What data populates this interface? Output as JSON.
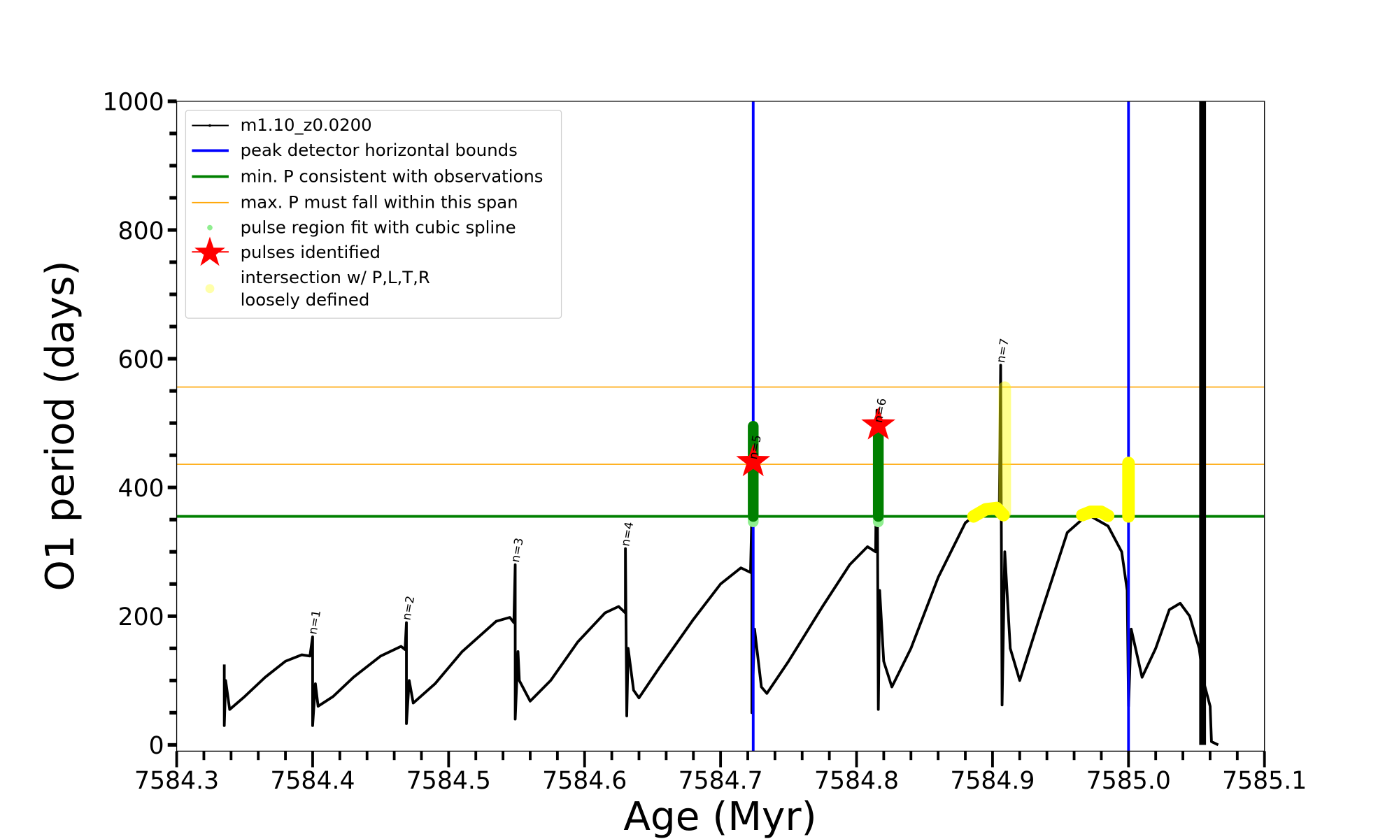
{
  "chart_data": {
    "type": "line",
    "xlabel": "Age (Myr)",
    "ylabel": "O1 period (days)",
    "xlim": [
      7584.3,
      7585.1
    ],
    "ylim": [
      0,
      1000
    ],
    "grid": false,
    "x_ticks": [
      "7584.3",
      "7584.4",
      "7584.5",
      "7584.6",
      "7584.7",
      "7584.8",
      "7584.9",
      "7585.0",
      "7585.1"
    ],
    "y_ticks": [
      "0",
      "200",
      "400",
      "600",
      "800",
      "1000"
    ],
    "legend_placement": "top-left",
    "legend": [
      {
        "label": "m1.10_z0.0200",
        "kind": "line-marker",
        "color": "#000000"
      },
      {
        "label": "peak detector horizontal bounds",
        "kind": "line",
        "color": "#0000ff"
      },
      {
        "label": "min. P consistent with observations",
        "kind": "line",
        "color": "#008000"
      },
      {
        "label": "max. P must fall within this span",
        "kind": "thin-line",
        "color": "#ffa500"
      },
      {
        "label": "pulse region fit with cubic spline",
        "kind": "dot",
        "color": "#90ee90"
      },
      {
        "label": "pulses identified",
        "kind": "star",
        "color": "#ff0000"
      },
      {
        "label": "intersection w/ P,L,T,R",
        "label2": "loosely defined",
        "kind": "dot",
        "color": "#ffffaa"
      }
    ],
    "series": [
      {
        "name": "m1.10_z0.0200",
        "color": "#000000",
        "points": [
          [
            7584.335,
            125
          ],
          [
            7584.335,
            30
          ],
          [
            7584.336,
            100
          ],
          [
            7584.339,
            55
          ],
          [
            7584.35,
            75
          ],
          [
            7584.365,
            105
          ],
          [
            7584.38,
            130
          ],
          [
            7584.392,
            140
          ],
          [
            7584.398,
            138
          ],
          [
            7584.4,
            168
          ],
          [
            7584.4,
            30
          ],
          [
            7584.402,
            95
          ],
          [
            7584.404,
            60
          ],
          [
            7584.415,
            75
          ],
          [
            7584.43,
            105
          ],
          [
            7584.45,
            138
          ],
          [
            7584.465,
            153
          ],
          [
            7584.468,
            148
          ],
          [
            7584.469,
            190
          ],
          [
            7584.469,
            33
          ],
          [
            7584.471,
            100
          ],
          [
            7584.474,
            65
          ],
          [
            7584.49,
            95
          ],
          [
            7584.51,
            145
          ],
          [
            7584.535,
            192
          ],
          [
            7584.545,
            198
          ],
          [
            7584.548,
            190
          ],
          [
            7584.549,
            280
          ],
          [
            7584.549,
            40
          ],
          [
            7584.551,
            145
          ],
          [
            7584.552,
            100
          ],
          [
            7584.56,
            68
          ],
          [
            7584.575,
            100
          ],
          [
            7584.595,
            160
          ],
          [
            7584.615,
            205
          ],
          [
            7584.625,
            215
          ],
          [
            7584.63,
            205
          ],
          [
            7584.63,
            305
          ],
          [
            7584.631,
            45
          ],
          [
            7584.632,
            150
          ],
          [
            7584.636,
            85
          ],
          [
            7584.64,
            73
          ],
          [
            7584.655,
            120
          ],
          [
            7584.68,
            195
          ],
          [
            7584.7,
            250
          ],
          [
            7584.715,
            275
          ],
          [
            7584.722,
            268
          ],
          [
            7584.723,
            360
          ],
          [
            7584.723,
            50
          ],
          [
            7584.725,
            180
          ],
          [
            7584.73,
            90
          ],
          [
            7584.734,
            80
          ],
          [
            7584.75,
            130
          ],
          [
            7584.775,
            215
          ],
          [
            7584.795,
            280
          ],
          [
            7584.808,
            308
          ],
          [
            7584.814,
            300
          ],
          [
            7584.815,
            520
          ],
          [
            7584.816,
            55
          ],
          [
            7584.817,
            240
          ],
          [
            7584.82,
            130
          ],
          [
            7584.826,
            90
          ],
          [
            7584.84,
            150
          ],
          [
            7584.86,
            260
          ],
          [
            7584.88,
            345
          ],
          [
            7584.895,
            370
          ],
          [
            7584.905,
            362
          ],
          [
            7584.906,
            590
          ],
          [
            7584.907,
            62
          ],
          [
            7584.909,
            300
          ],
          [
            7584.913,
            150
          ],
          [
            7584.92,
            100
          ],
          [
            7584.935,
            200
          ],
          [
            7584.955,
            330
          ],
          [
            7584.97,
            358
          ],
          [
            7584.985,
            340
          ],
          [
            7584.995,
            300
          ],
          [
            7584.999,
            240
          ],
          [
            7585.0,
            60
          ],
          [
            7585.002,
            180
          ],
          [
            7585.01,
            105
          ],
          [
            7585.02,
            150
          ],
          [
            7585.03,
            210
          ],
          [
            7585.038,
            220
          ],
          [
            7585.045,
            200
          ],
          [
            7585.052,
            150
          ],
          [
            7585.055,
            100
          ],
          [
            7585.06,
            60
          ],
          [
            7585.061,
            5
          ],
          [
            7585.066,
            0
          ]
        ],
        "dense_band": {
          "x0": 7585.052,
          "x1": 7585.057,
          "y0": 0,
          "y1": 1000
        }
      }
    ],
    "peak_detector_bounds": [
      7584.724,
      7585.0
    ],
    "min_period": 355,
    "max_period_span": [
      436,
      556
    ],
    "spline_regions": [
      {
        "x": 7584.724,
        "y0": 355,
        "y1": 495
      },
      {
        "x": 7584.816,
        "y0": 355,
        "y1": 495
      }
    ],
    "intersections": [
      {
        "points": [
          [
            7584.886,
            355
          ],
          [
            7584.895,
            366
          ],
          [
            7584.903,
            368
          ],
          [
            7584.908,
            357
          ]
        ],
        "alpha": 1
      },
      {
        "points": [
          [
            7584.909,
            360
          ],
          [
            7584.909,
            555
          ]
        ],
        "alpha": 0.45
      },
      {
        "points": [
          [
            7584.966,
            357
          ],
          [
            7584.972,
            362
          ],
          [
            7584.98,
            362
          ],
          [
            7584.985,
            356
          ]
        ],
        "alpha": 1
      },
      {
        "points": [
          [
            7585.0,
            355
          ],
          [
            7585.0,
            438
          ]
        ],
        "alpha": 1
      }
    ],
    "pulses": [
      {
        "x": 7584.724,
        "y": 440
      },
      {
        "x": 7584.816,
        "y": 497
      }
    ],
    "pulse_labels": [
      {
        "text": "n=1",
        "x": 7584.4,
        "y": 168
      },
      {
        "text": "n=2",
        "x": 7584.469,
        "y": 190
      },
      {
        "text": "n=3",
        "x": 7584.549,
        "y": 280
      },
      {
        "text": "n=4",
        "x": 7584.63,
        "y": 305
      },
      {
        "text": "n=5",
        "x": 7584.724,
        "y": 440
      },
      {
        "text": "n=6",
        "x": 7584.816,
        "y": 497
      },
      {
        "text": "n=7",
        "x": 7584.906,
        "y": 590
      }
    ]
  }
}
